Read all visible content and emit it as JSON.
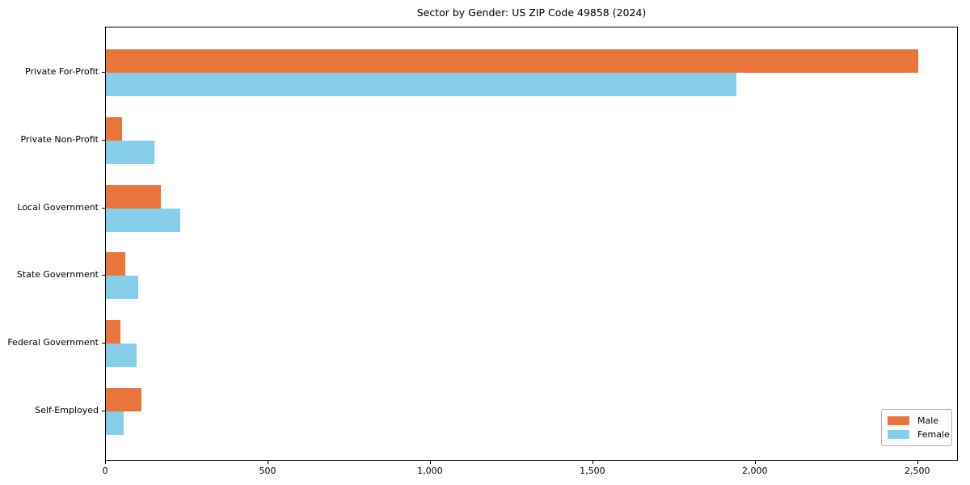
{
  "chart_data": {
    "type": "bar",
    "orientation": "horizontal",
    "title": "Sector by Gender: US ZIP Code 49858 (2024)",
    "categories": [
      "Private For-Profit",
      "Private Non-Profit",
      "Local Government",
      "State Government",
      "Federal Government",
      "Self-Employed"
    ],
    "series": [
      {
        "name": "Male",
        "color": "#E8763C",
        "values": [
          2500,
          50,
          170,
          60,
          45,
          110
        ]
      },
      {
        "name": "Female",
        "color": "#87CEEB",
        "values": [
          1940,
          150,
          230,
          100,
          95,
          55
        ]
      }
    ],
    "xlabel": "",
    "ylabel": "",
    "xlim": [
      0,
      2625
    ],
    "xticks": [
      0,
      500,
      1000,
      1500,
      2000,
      2500
    ],
    "xtick_labels": [
      "0",
      "500",
      "1,000",
      "1,500",
      "2,000",
      "2,500"
    ],
    "grid": false,
    "legend_position": "lower right",
    "frame": "full-box",
    "colors": {
      "axis": "#000000",
      "legend_border": "#b3b3b3",
      "background": "#ffffff"
    }
  }
}
